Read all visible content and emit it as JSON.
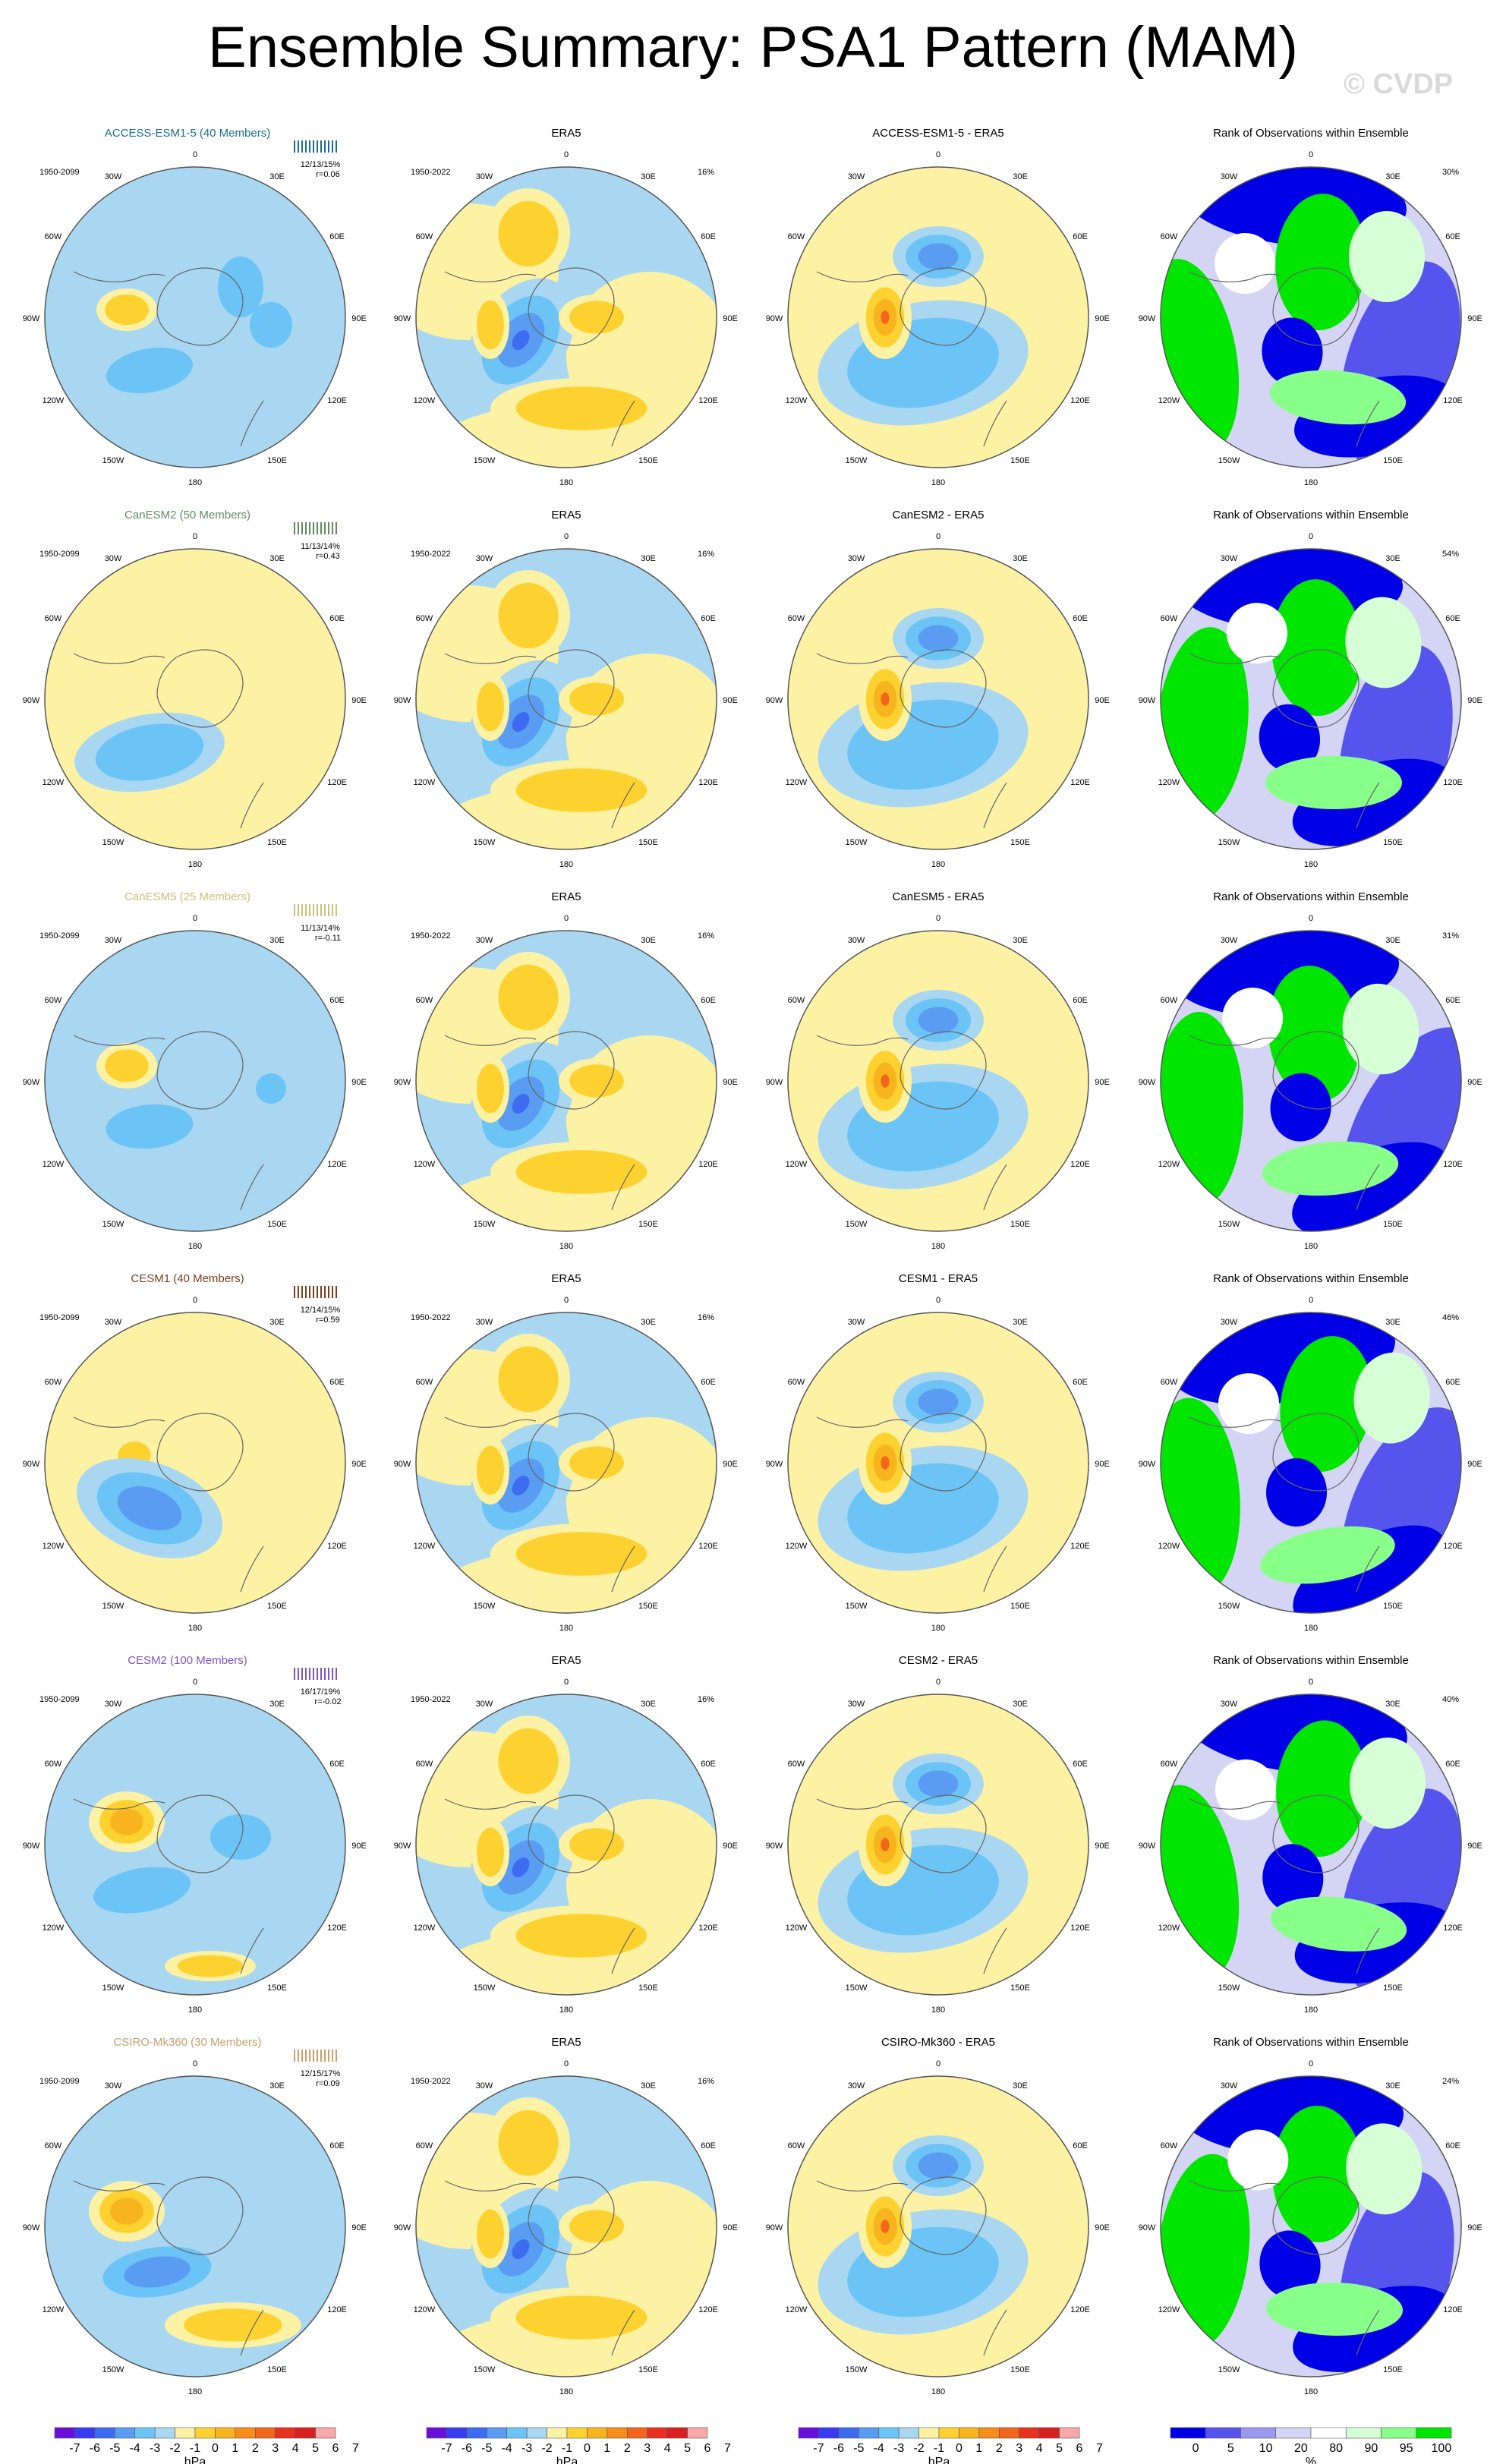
{
  "title": "Ensemble Summary: PSA1 Pattern (MAM)",
  "watermark": "© CVDP",
  "colors": {
    "model_titles": [
      "#1a6f8e",
      "#5e8c5e",
      "#c8c27a",
      "#7a3f1a",
      "#7d55c7",
      "#c7a06e"
    ],
    "anomaly_scale": [
      "#6a0ed9",
      "#3a3af0",
      "#3d6cf0",
      "#5a9cf2",
      "#6cc3f5",
      "#a9d7f2",
      "#fdf2a4",
      "#fdd230",
      "#f8b41e",
      "#f78d1a",
      "#f2661c",
      "#e8321f",
      "#d91f1f",
      "#f7a9a9"
    ],
    "rank_scale": [
      "#0000e6",
      "#5555ee",
      "#9999ee",
      "#d4d4f4",
      "#ffffff",
      "#d6ffd6",
      "#88ff88",
      "#00e600"
    ]
  },
  "chart_data": {
    "type": "heatmap",
    "description_labels": {
      "longitude_labels": [
        "0",
        "30E",
        "60E",
        "90E",
        "120E",
        "150E",
        "180",
        "150W",
        "120W",
        "90W",
        "60W",
        "30W"
      ]
    },
    "rows": [
      {
        "model": "ACCESS-ESM1-5 (40 Members)",
        "model_period": "1950-2099",
        "stats": "12/13/15%",
        "r": "r=0.06",
        "obs_title": "ERA5",
        "obs_period": "1950-2022",
        "obs_pct": "16%",
        "diff_title": "ACCESS-ESM1-5 - ERA5",
        "rank_title": "Rank of Observations within Ensemble",
        "rank_pct": "30%"
      },
      {
        "model": "CanESM2 (50 Members)",
        "model_period": "1950-2099",
        "stats": "11/13/14%",
        "r": "r=0.43",
        "obs_title": "ERA5",
        "obs_period": "1950-2022",
        "obs_pct": "16%",
        "diff_title": "CanESM2 - ERA5",
        "rank_title": "Rank of Observations within Ensemble",
        "rank_pct": "54%"
      },
      {
        "model": "CanESM5 (25 Members)",
        "model_period": "1950-2099",
        "stats": "11/13/14%",
        "r": "r=-0.11",
        "obs_title": "ERA5",
        "obs_period": "1950-2022",
        "obs_pct": "16%",
        "diff_title": "CanESM5 - ERA5",
        "rank_title": "Rank of Observations within Ensemble",
        "rank_pct": "31%"
      },
      {
        "model": "CESM1 (40 Members)",
        "model_period": "1950-2099",
        "stats": "12/14/15%",
        "r": "r=0.59",
        "obs_title": "ERA5",
        "obs_period": "1950-2022",
        "obs_pct": "16%",
        "diff_title": "CESM1 - ERA5",
        "rank_title": "Rank of Observations within Ensemble",
        "rank_pct": "46%"
      },
      {
        "model": "CESM2 (100 Members)",
        "model_period": "1950-2099",
        "stats": "16/17/19%",
        "r": "r=-0.02",
        "obs_title": "ERA5",
        "obs_period": "1950-2022",
        "obs_pct": "16%",
        "diff_title": "CESM2 - ERA5",
        "rank_title": "Rank of Observations within Ensemble",
        "rank_pct": "40%"
      },
      {
        "model": "CSIRO-Mk360 (30 Members)",
        "model_period": "1950-2099",
        "stats": "12/15/17%",
        "r": "r=0.09",
        "obs_title": "ERA5",
        "obs_period": "1950-2022",
        "obs_pct": "16%",
        "diff_title": "CSIRO-Mk360 - ERA5",
        "rank_title": "Rank of Observations within Ensemble",
        "rank_pct": "24%"
      }
    ],
    "colorbars": [
      {
        "labels": [
          "-7",
          "-6",
          "-5",
          "-4",
          "-3",
          "-2",
          "-1",
          "0",
          "1",
          "2",
          "3",
          "4",
          "5",
          "6",
          "7"
        ],
        "unit": "hPa"
      },
      {
        "labels": [
          "-7",
          "-6",
          "-5",
          "-4",
          "-3",
          "-2",
          "-1",
          "0",
          "1",
          "2",
          "3",
          "4",
          "5",
          "6",
          "7"
        ],
        "unit": "hPa"
      },
      {
        "labels": [
          "-7",
          "-6",
          "-5",
          "-4",
          "-3",
          "-2",
          "-1",
          "0",
          "1",
          "2",
          "3",
          "4",
          "5",
          "6",
          "7"
        ],
        "unit": "hPa"
      },
      {
        "labels": [
          "0",
          "5",
          "10",
          "20",
          "80",
          "90",
          "95",
          "100"
        ],
        "unit": "%"
      }
    ]
  }
}
